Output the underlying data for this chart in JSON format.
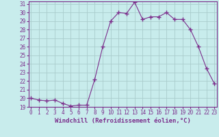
{
  "x": [
    0,
    1,
    2,
    3,
    4,
    5,
    6,
    7,
    8,
    9,
    10,
    11,
    12,
    13,
    14,
    15,
    16,
    17,
    18,
    19,
    20,
    21,
    22,
    23
  ],
  "y": [
    20.0,
    19.8,
    19.7,
    19.8,
    19.4,
    19.1,
    19.2,
    19.2,
    22.2,
    26.0,
    29.0,
    30.0,
    29.9,
    31.2,
    29.2,
    29.5,
    29.5,
    30.0,
    29.2,
    29.2,
    28.0,
    26.0,
    23.5,
    21.7
  ],
  "line_color": "#7b2d8b",
  "marker": "+",
  "marker_size": 4,
  "bg_color": "#c8ecec",
  "grid_color": "#aacccc",
  "xlabel": "Windchill (Refroidissement éolien,°C)",
  "ylim_min": 19,
  "ylim_max": 31,
  "xlim_min": 0,
  "xlim_max": 23,
  "ytick_step": 1,
  "line_color2": "#7b2d8b",
  "axis_color": "#7b2d8b",
  "tick_color": "#7b2d8b",
  "label_fontsize": 6.5,
  "tick_fontsize": 5.5
}
